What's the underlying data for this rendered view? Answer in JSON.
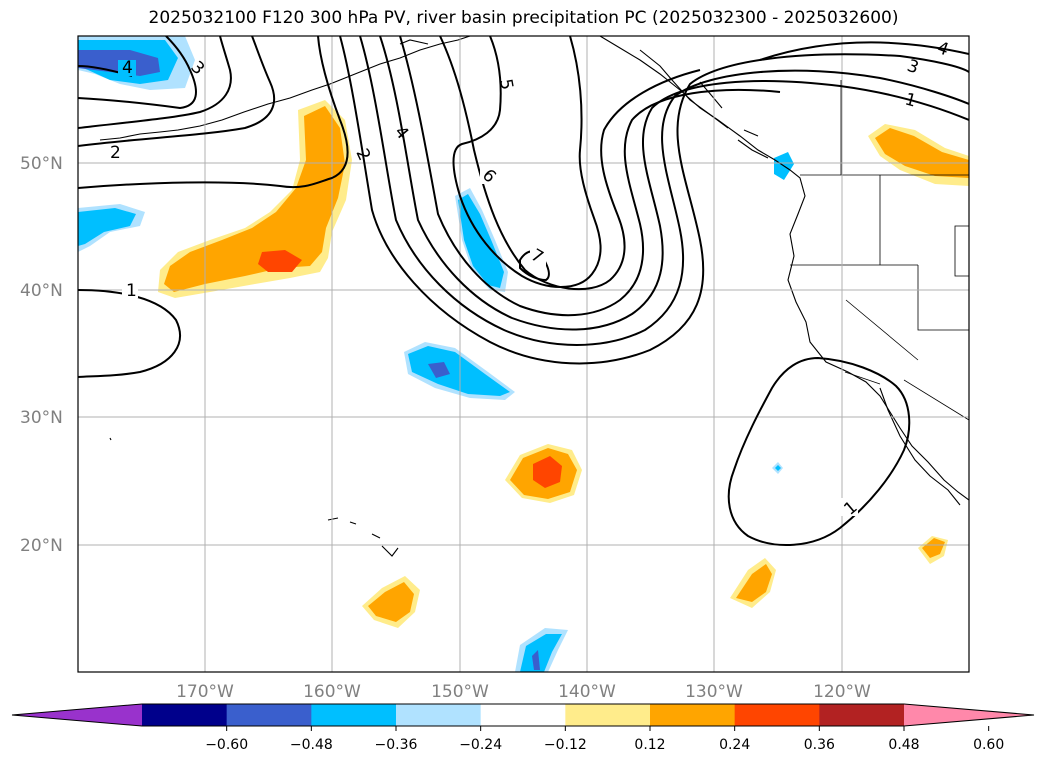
{
  "title": "2025032100 F120 300 hPa PV, river basin precipitation PC (2025032300 - 2025032600)",
  "map": {
    "lon_range": [
      -180,
      -110
    ],
    "lat_range": [
      10,
      60
    ],
    "gridlines": true,
    "lat_ticks": [
      {
        "value": 20,
        "label": "20°N"
      },
      {
        "value": 30,
        "label": "30°N"
      },
      {
        "value": 40,
        "label": "40°N"
      },
      {
        "value": 50,
        "label": "50°N"
      }
    ],
    "lon_ticks": [
      {
        "value": -170,
        "label": "170°W"
      },
      {
        "value": -160,
        "label": "160°W"
      },
      {
        "value": -150,
        "label": "150°W"
      },
      {
        "value": -140,
        "label": "140°W"
      },
      {
        "value": -130,
        "label": "130°W"
      },
      {
        "value": -120,
        "label": "120°W"
      }
    ],
    "pv_contour_labels": [
      "1",
      "2",
      "3",
      "4",
      "5",
      "6",
      "7"
    ]
  },
  "colorbar": {
    "orientation": "horizontal",
    "extend": "both",
    "bounds": [
      -0.72,
      -0.6,
      -0.48,
      -0.36,
      -0.24,
      -0.12,
      0.12,
      0.24,
      0.36,
      0.48,
      0.6,
      0.72
    ],
    "colors": [
      "#9932cc",
      "#00008b",
      "#3a5fcd",
      "#00bfff",
      "#b0e2ff",
      "#ffffff",
      "#ffec8b",
      "#ffa500",
      "#ff4500",
      "#b22222",
      "#ff88aa"
    ],
    "tick_labels": [
      "−0.60",
      "−0.48",
      "−0.36",
      "−0.24",
      "−0.12",
      "0.12",
      "0.24",
      "0.36",
      "0.48",
      "0.60"
    ]
  }
}
